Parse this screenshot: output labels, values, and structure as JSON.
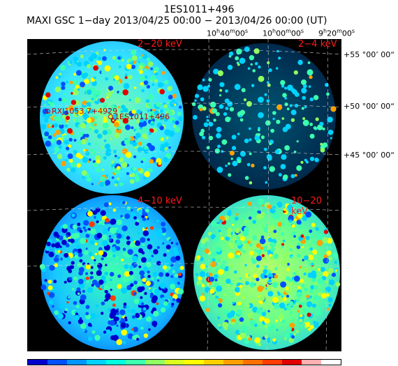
{
  "title_line1": "1ES1011+496",
  "title_line2": "MAXI GSC 1−day 2013/04/25 00:00 − 2013/04/26 00:00 (UT)",
  "ra_labels": [
    "10h40m00s",
    "10h00m00s",
    "9h20m00s"
  ],
  "dec_labels": [
    "+55 °00’ 00ˮ",
    "+50 °00’ 00ˮ",
    "+45 °00’ 00ˮ"
  ],
  "panels": [
    {
      "label": "2−20 keV"
    },
    {
      "label": "2−4 keV"
    },
    {
      "label": "4−10 keV"
    },
    {
      "label": "10−20 keV"
    }
  ],
  "sources": [
    "RXJ1053.7+4929",
    "1ES1011+496"
  ],
  "colorbar": [
    "#0000cc",
    "#0050ff",
    "#0096ff",
    "#00d2ff",
    "#00ffe0",
    "#3cffb0",
    "#90ff60",
    "#d8ff20",
    "#ffff00",
    "#ffd000",
    "#ffa000",
    "#ff7000",
    "#ff3c00",
    "#e00000",
    "#ffb0b0",
    "#ffffff"
  ],
  "colors": {
    "background": "#000000",
    "contour": "#ffffff"
  }
}
